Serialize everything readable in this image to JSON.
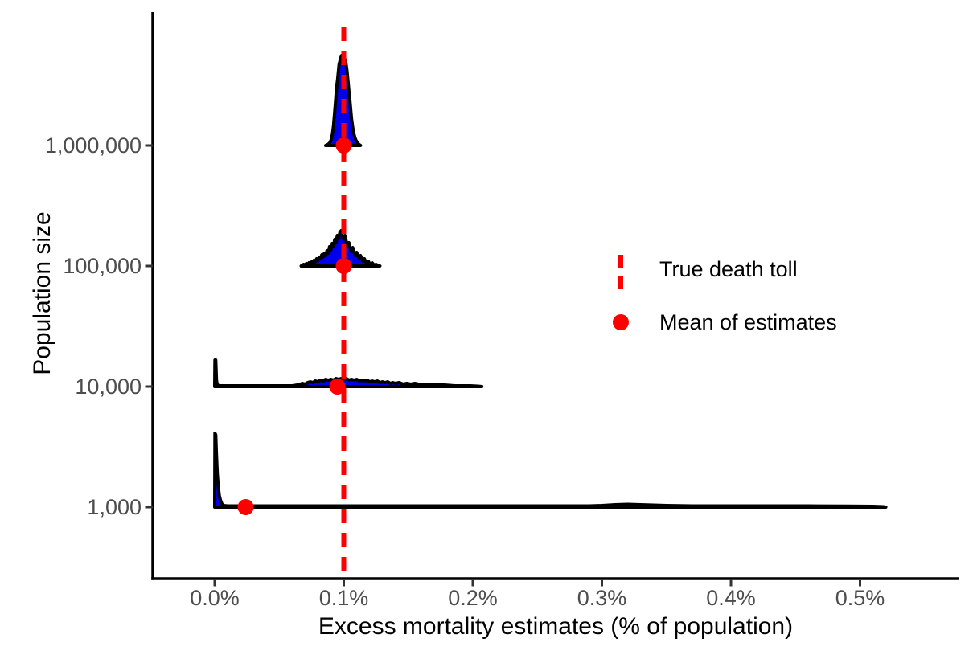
{
  "chart_data": {
    "type": "ridgeline_density",
    "title": "",
    "xlabel": "Excess mortality estimates (% of population)",
    "ylabel": "Population size",
    "x_ticks": [
      "0.0%",
      "0.1%",
      "0.2%",
      "0.3%",
      "0.4%",
      "0.5%"
    ],
    "x_tick_values": [
      0.0,
      0.1,
      0.2,
      0.3,
      0.4,
      0.5
    ],
    "x_range_pct": [
      0.0,
      0.57
    ],
    "y_ticks": [
      "1,000,000",
      "100,000",
      "10,000",
      "1,000"
    ],
    "grid": "off",
    "legend_position": "right-middle",
    "true_death_toll_pct": 0.1,
    "legend": {
      "true_line_label": "True death toll",
      "mean_label": "Mean of estimates"
    },
    "colors": {
      "true_line": "#FF0000",
      "mean_dot": "#FF0000",
      "density_fill": "#0000EE",
      "density_outline": "#000000",
      "axis": "#000000",
      "tick_mark": "#333333",
      "tick_label": "#4D4D4D"
    },
    "series": [
      {
        "population": "1,000,000",
        "mean_pct": 0.1,
        "summary": "narrow unimodal spike centered on 0.1%, range ~0.086%-0.113%, peak height 113",
        "points": [
          [
            0.086,
            0
          ],
          [
            0.0875,
            1
          ],
          [
            0.089,
            3
          ],
          [
            0.0902,
            7
          ],
          [
            0.0912,
            14
          ],
          [
            0.092,
            24
          ],
          [
            0.0928,
            38
          ],
          [
            0.0934,
            50
          ],
          [
            0.094,
            63
          ],
          [
            0.0946,
            74
          ],
          [
            0.0952,
            82
          ],
          [
            0.0958,
            92
          ],
          [
            0.0964,
            101
          ],
          [
            0.097,
            105
          ],
          [
            0.0976,
            109
          ],
          [
            0.0984,
            112
          ],
          [
            0.0992,
            113
          ],
          [
            0.1,
            112
          ],
          [
            0.1008,
            108
          ],
          [
            0.1016,
            103
          ],
          [
            0.1024,
            94
          ],
          [
            0.1032,
            82
          ],
          [
            0.104,
            68
          ],
          [
            0.1048,
            55
          ],
          [
            0.1054,
            44
          ],
          [
            0.106,
            34
          ],
          [
            0.1068,
            24
          ],
          [
            0.1076,
            16
          ],
          [
            0.1086,
            10
          ],
          [
            0.1096,
            6
          ],
          [
            0.1108,
            3
          ],
          [
            0.112,
            1
          ],
          [
            0.113,
            0
          ]
        ]
      },
      {
        "population": "100,000",
        "mean_pct": 0.1,
        "summary": "jagged unimodal density centered near 0.1%, range ~0.067%-0.128%, peak height 44",
        "points": [
          [
            0.067,
            0
          ],
          [
            0.068,
            1
          ],
          [
            0.069,
            2
          ],
          [
            0.07,
            1
          ],
          [
            0.071,
            3
          ],
          [
            0.072,
            2
          ],
          [
            0.073,
            4
          ],
          [
            0.074,
            3
          ],
          [
            0.075,
            5
          ],
          [
            0.076,
            4
          ],
          [
            0.077,
            7
          ],
          [
            0.078,
            5
          ],
          [
            0.079,
            9
          ],
          [
            0.08,
            7
          ],
          [
            0.081,
            11
          ],
          [
            0.082,
            9
          ],
          [
            0.083,
            14
          ],
          [
            0.084,
            11
          ],
          [
            0.085,
            16
          ],
          [
            0.086,
            13
          ],
          [
            0.087,
            19
          ],
          [
            0.088,
            16
          ],
          [
            0.089,
            24
          ],
          [
            0.09,
            20
          ],
          [
            0.091,
            28
          ],
          [
            0.092,
            24
          ],
          [
            0.093,
            33
          ],
          [
            0.094,
            29
          ],
          [
            0.095,
            38
          ],
          [
            0.096,
            34
          ],
          [
            0.097,
            42
          ],
          [
            0.098,
            44
          ],
          [
            0.099,
            37
          ],
          [
            0.1,
            33
          ],
          [
            0.101,
            38
          ],
          [
            0.102,
            30
          ],
          [
            0.103,
            25
          ],
          [
            0.104,
            29
          ],
          [
            0.105,
            22
          ],
          [
            0.106,
            18
          ],
          [
            0.107,
            23
          ],
          [
            0.108,
            17
          ],
          [
            0.109,
            13
          ],
          [
            0.11,
            17
          ],
          [
            0.111,
            12
          ],
          [
            0.112,
            9
          ],
          [
            0.113,
            13
          ],
          [
            0.114,
            8
          ],
          [
            0.115,
            6
          ],
          [
            0.116,
            9
          ],
          [
            0.117,
            5
          ],
          [
            0.118,
            4
          ],
          [
            0.119,
            6
          ],
          [
            0.12,
            3
          ],
          [
            0.121,
            2
          ],
          [
            0.122,
            4
          ],
          [
            0.123,
            2
          ],
          [
            0.124,
            1
          ],
          [
            0.125,
            2
          ],
          [
            0.126,
            1
          ],
          [
            0.127,
            1
          ],
          [
            0.128,
            0
          ]
        ]
      },
      {
        "population": "10,000",
        "mean_pct": 0.095,
        "summary": "tall narrow spike at 0% plus broad low bumpy mass around 0.1%, baseline extends to ~0.207%",
        "points": [
          [
            0,
            0
          ],
          [
            0.0002,
            33
          ],
          [
            0.0008,
            33
          ],
          [
            0.0014,
            8
          ],
          [
            0.002,
            2
          ],
          [
            0.004,
            1
          ],
          [
            0.01,
            1
          ],
          [
            0.02,
            1
          ],
          [
            0.03,
            1
          ],
          [
            0.04,
            1
          ],
          [
            0.05,
            1
          ],
          [
            0.06,
            1
          ],
          [
            0.064,
            2
          ],
          [
            0.066,
            3
          ],
          [
            0.068,
            4
          ],
          [
            0.07,
            3
          ],
          [
            0.072,
            5
          ],
          [
            0.074,
            6
          ],
          [
            0.076,
            5
          ],
          [
            0.078,
            7
          ],
          [
            0.08,
            6
          ],
          [
            0.082,
            8
          ],
          [
            0.084,
            7
          ],
          [
            0.086,
            9
          ],
          [
            0.088,
            8
          ],
          [
            0.09,
            9
          ],
          [
            0.092,
            8
          ],
          [
            0.094,
            10
          ],
          [
            0.096,
            9
          ],
          [
            0.098,
            10
          ],
          [
            0.1,
            9
          ],
          [
            0.102,
            10
          ],
          [
            0.104,
            8
          ],
          [
            0.106,
            9
          ],
          [
            0.108,
            8
          ],
          [
            0.11,
            9
          ],
          [
            0.112,
            7
          ],
          [
            0.114,
            8
          ],
          [
            0.116,
            7
          ],
          [
            0.118,
            8
          ],
          [
            0.12,
            6
          ],
          [
            0.122,
            7
          ],
          [
            0.124,
            6
          ],
          [
            0.126,
            7
          ],
          [
            0.128,
            5
          ],
          [
            0.13,
            6
          ],
          [
            0.132,
            5
          ],
          [
            0.134,
            6
          ],
          [
            0.136,
            4
          ],
          [
            0.138,
            5
          ],
          [
            0.14,
            4
          ],
          [
            0.143,
            5
          ],
          [
            0.146,
            3
          ],
          [
            0.149,
            4
          ],
          [
            0.152,
            3
          ],
          [
            0.155,
            4
          ],
          [
            0.158,
            3
          ],
          [
            0.162,
            3
          ],
          [
            0.166,
            2
          ],
          [
            0.17,
            3
          ],
          [
            0.174,
            2
          ],
          [
            0.178,
            2
          ],
          [
            0.182,
            1.5
          ],
          [
            0.186,
            1
          ],
          [
            0.192,
            1
          ],
          [
            0.198,
            1
          ],
          [
            0.204,
            0.5
          ],
          [
            0.207,
            0
          ]
        ]
      },
      {
        "population": "1,000",
        "mean_pct": 0.024,
        "summary": "very tall spike at 0% then near-flat long tail to ~0.52% with slight bump near 0.32%",
        "points": [
          [
            0,
            0
          ],
          [
            0.0002,
            92
          ],
          [
            0.0008,
            90
          ],
          [
            0.0014,
            65
          ],
          [
            0.002,
            42
          ],
          [
            0.0028,
            25
          ],
          [
            0.0036,
            14
          ],
          [
            0.0046,
            8
          ],
          [
            0.0056,
            4
          ],
          [
            0.007,
            2
          ],
          [
            0.01,
            1.5
          ],
          [
            0.02,
            1.5
          ],
          [
            0.04,
            1.5
          ],
          [
            0.07,
            1.5
          ],
          [
            0.1,
            1.5
          ],
          [
            0.15,
            1.5
          ],
          [
            0.2,
            1.5
          ],
          [
            0.25,
            1.5
          ],
          [
            0.29,
            1.5
          ],
          [
            0.3,
            2
          ],
          [
            0.31,
            3
          ],
          [
            0.32,
            3.5
          ],
          [
            0.33,
            3
          ],
          [
            0.34,
            2.5
          ],
          [
            0.35,
            2
          ],
          [
            0.37,
            1.5
          ],
          [
            0.4,
            1.5
          ],
          [
            0.43,
            1.5
          ],
          [
            0.46,
            1.5
          ],
          [
            0.49,
            1.2
          ],
          [
            0.51,
            1
          ],
          [
            0.518,
            0.5
          ],
          [
            0.52,
            0
          ]
        ]
      }
    ]
  }
}
